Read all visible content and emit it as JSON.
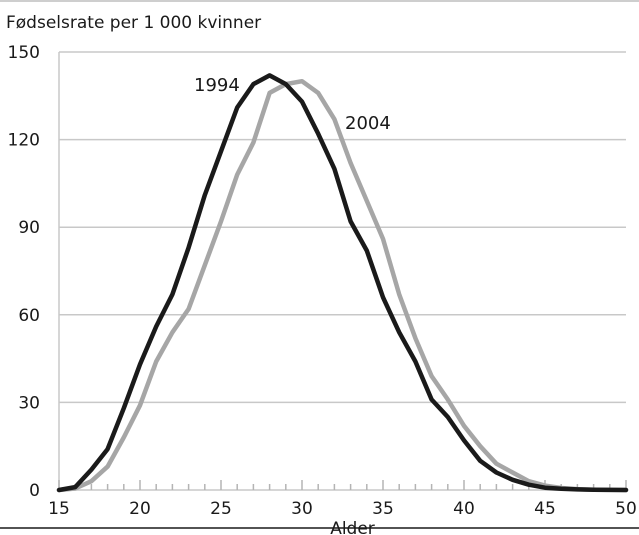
{
  "chart_data": {
    "type": "line",
    "title": "",
    "ylabel": "Fødselsrate per 1 000 kvinner",
    "xlabel": "Alder",
    "xlim": [
      15,
      50
    ],
    "ylim": [
      0,
      150
    ],
    "x_ticks": [
      15,
      20,
      25,
      30,
      35,
      40,
      45,
      50
    ],
    "y_ticks": [
      0,
      30,
      60,
      90,
      120,
      150
    ],
    "grid": "horizontal",
    "legend": "inline-labels",
    "x": [
      15,
      16,
      17,
      18,
      19,
      20,
      21,
      22,
      23,
      24,
      25,
      26,
      27,
      28,
      29,
      30,
      31,
      32,
      33,
      34,
      35,
      36,
      37,
      38,
      39,
      40,
      41,
      42,
      43,
      44,
      45,
      46,
      47,
      48,
      49,
      50
    ],
    "series": [
      {
        "name": "1994",
        "color": "#1a1a1a",
        "values": [
          0,
          1,
          7,
          14,
          28,
          43,
          56,
          67,
          83,
          101,
          116,
          131,
          139,
          142,
          139,
          133,
          122,
          110,
          92,
          82,
          66,
          54,
          44,
          31,
          25,
          17,
          10,
          6,
          3.5,
          1.8,
          0.8,
          0.4,
          0.2,
          0.1,
          0.05,
          0
        ]
      },
      {
        "name": "2004",
        "color": "#a6a6a6",
        "values": [
          0,
          0.5,
          3,
          8,
          18,
          29,
          44,
          54,
          62,
          77,
          92,
          108,
          119,
          136,
          139,
          140,
          136,
          127,
          112,
          99,
          86,
          67,
          52,
          39,
          31,
          22,
          15,
          9,
          6,
          3,
          1.5,
          0.7,
          0.3,
          0.1,
          0.05,
          0
        ]
      }
    ]
  }
}
